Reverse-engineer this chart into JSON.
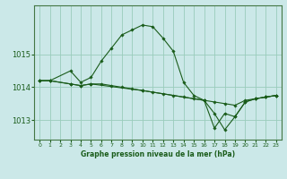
{
  "title": "Graphe pression niveau de la mer (hPa)",
  "background_color": "#cbe8e8",
  "grid_color": "#99ccbb",
  "line_color": "#1a5c1a",
  "xlim": [
    -0.5,
    23.5
  ],
  "ylim": [
    1012.4,
    1016.5
  ],
  "yticks": [
    1013,
    1014,
    1015
  ],
  "xticks": [
    0,
    1,
    2,
    3,
    4,
    5,
    6,
    7,
    8,
    9,
    10,
    11,
    12,
    13,
    14,
    15,
    16,
    17,
    18,
    19,
    20,
    21,
    22,
    23
  ],
  "series": [
    {
      "x": [
        0,
        1,
        3,
        4,
        5,
        6,
        7,
        8,
        9,
        10,
        11,
        12,
        13,
        14,
        15,
        16,
        17,
        18,
        19,
        20,
        21,
        22,
        23
      ],
      "y": [
        1014.2,
        1014.2,
        1014.5,
        1014.15,
        1014.3,
        1014.8,
        1015.2,
        1015.6,
        1015.75,
        1015.9,
        1015.85,
        1015.5,
        1015.1,
        1014.15,
        1013.75,
        1013.6,
        1012.75,
        1013.2,
        1013.1,
        1013.55,
        1013.65,
        1013.7,
        1013.75
      ]
    },
    {
      "x": [
        0,
        1,
        3,
        4,
        5,
        6,
        7,
        8,
        9,
        10,
        11,
        12,
        13,
        14,
        15,
        16,
        17,
        18,
        19,
        20,
        21,
        22,
        23
      ],
      "y": [
        1014.2,
        1014.2,
        1014.1,
        1014.05,
        1014.1,
        1014.1,
        1014.05,
        1014.0,
        1013.95,
        1013.9,
        1013.85,
        1013.8,
        1013.75,
        1013.7,
        1013.65,
        1013.6,
        1013.55,
        1013.5,
        1013.45,
        1013.6,
        1013.65,
        1013.7,
        1013.75
      ]
    },
    {
      "x": [
        0,
        1,
        3,
        4,
        5,
        10,
        16,
        17,
        18,
        19,
        20,
        21,
        22,
        23
      ],
      "y": [
        1014.2,
        1014.2,
        1014.1,
        1014.05,
        1014.1,
        1013.9,
        1013.6,
        1013.2,
        1012.7,
        1013.1,
        1013.55,
        1013.65,
        1013.7,
        1013.75
      ]
    }
  ]
}
